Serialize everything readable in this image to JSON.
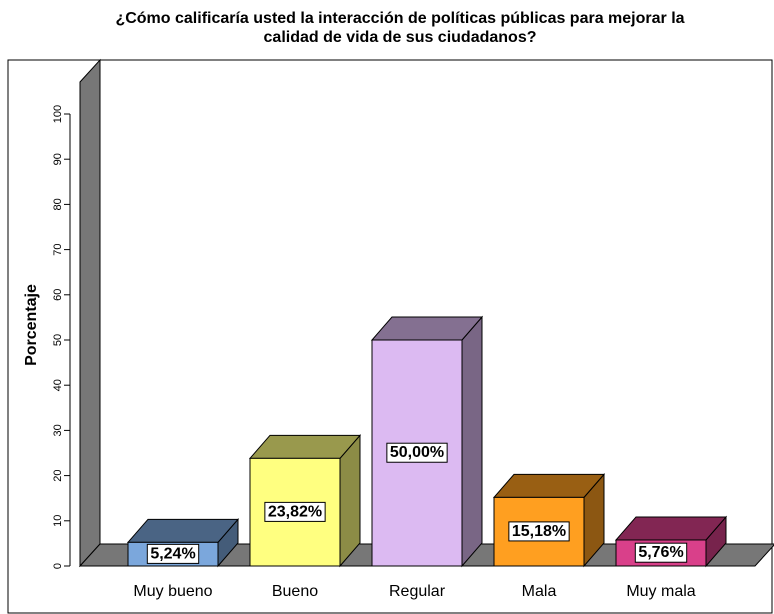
{
  "chart_data": {
    "type": "bar3d",
    "title": [
      "¿Cómo calificaría usted la interacción de políticas públicas para mejorar la",
      "calidad de vida de sus ciudadanos?"
    ],
    "y_label": "Porcentaje",
    "categories": [
      "Muy bueno",
      "Bueno",
      "Regular",
      "Mala",
      "Muy mala"
    ],
    "values": [
      5.24,
      23.82,
      50.0,
      15.18,
      5.76
    ],
    "value_labels": [
      "5,24%",
      "23,82%",
      "50,00%",
      "15,18%",
      "5,76%"
    ],
    "colors": [
      "#7ba7dc",
      "#ffff80",
      "#dcbaf2",
      "#ff9f20",
      "#d9408a"
    ],
    "ylim": [
      0,
      100
    ],
    "yticks": [
      0,
      10,
      20,
      30,
      40,
      50,
      60,
      70,
      80,
      90,
      100
    ]
  }
}
